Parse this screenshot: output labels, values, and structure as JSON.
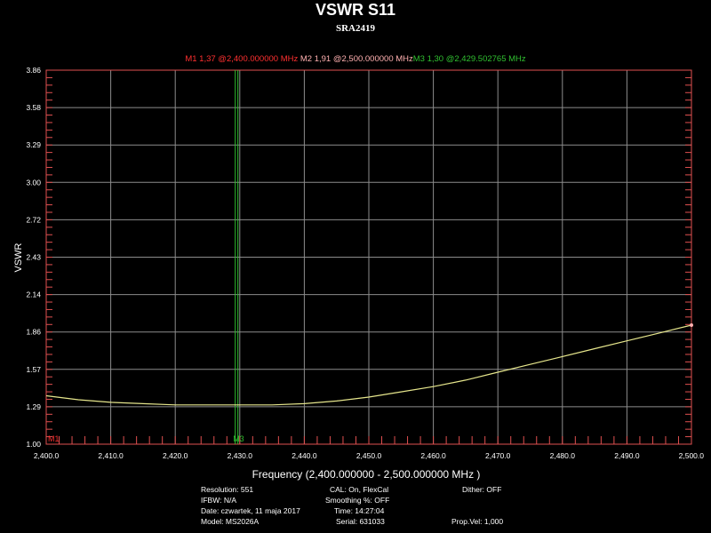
{
  "chart_data": {
    "type": "line",
    "title": "VSWR S11",
    "subtitle": "SRA2419",
    "xlabel": "Frequency (2,400.000000 - 2,500.000000 MHz )",
    "ylabel": "VSWR",
    "xlim": [
      2400,
      2500
    ],
    "ylim": [
      1.0,
      3.86
    ],
    "x_ticks": [
      "2,400.0",
      "2,410.0",
      "2,420.0",
      "2,430.0",
      "2,440.0",
      "2,450.0",
      "2,460.0",
      "2,470.0",
      "2,480.0",
      "2,490.0",
      "2,500.0"
    ],
    "y_ticks": [
      "3.86",
      "3.58",
      "3.29",
      "3.00",
      "2.72",
      "2.43",
      "2.14",
      "1.86",
      "1.57",
      "1.29",
      "1.00"
    ],
    "grid": true,
    "series": [
      {
        "color": "#e6e68c",
        "x": [
          2400,
          2405,
          2410,
          2415,
          2420,
          2425,
          2430,
          2435,
          2440,
          2445,
          2450,
          2455,
          2460,
          2465,
          2470,
          2475,
          2480,
          2485,
          2490,
          2495,
          2500
        ],
        "y": [
          1.37,
          1.34,
          1.32,
          1.31,
          1.3,
          1.3,
          1.3,
          1.3,
          1.31,
          1.33,
          1.36,
          1.4,
          1.44,
          1.49,
          1.55,
          1.61,
          1.67,
          1.73,
          1.79,
          1.85,
          1.91
        ]
      }
    ],
    "markers": [
      {
        "label": "M1",
        "text": "M1  1,37 @2,400.000000 MHz",
        "x": 2400.0,
        "y": 1.37,
        "color": "#ff3030"
      },
      {
        "label": "M2",
        "text": "M2  1,91 @2,500.000000 MHz",
        "x": 2500.0,
        "y": 1.91,
        "color": "#ffb0b0"
      },
      {
        "label": "M3",
        "text": "M3  1,30 @2,429.502765 MHz",
        "x": 2429.502765,
        "y": 1.3,
        "color": "#30c030"
      }
    ]
  },
  "colors": {
    "axis": "#e05050",
    "grid": "#8c8c8c",
    "trace": "#e6e68c"
  },
  "footer": {
    "resolution": "Resolution:  551",
    "ifbw": "IFBW:  N/A",
    "date": "Date:  czwartek, 11 maja 2017",
    "model": "Model:  MS2026A",
    "cal": "CAL:  On, FlexCal",
    "smoothing": "Smoothing %:   OFF",
    "time": "Time:  14:27:04",
    "serial": "Serial:  631033",
    "dither": "Dither:   OFF",
    "propvel": "Prop.Vel:  1,000"
  }
}
